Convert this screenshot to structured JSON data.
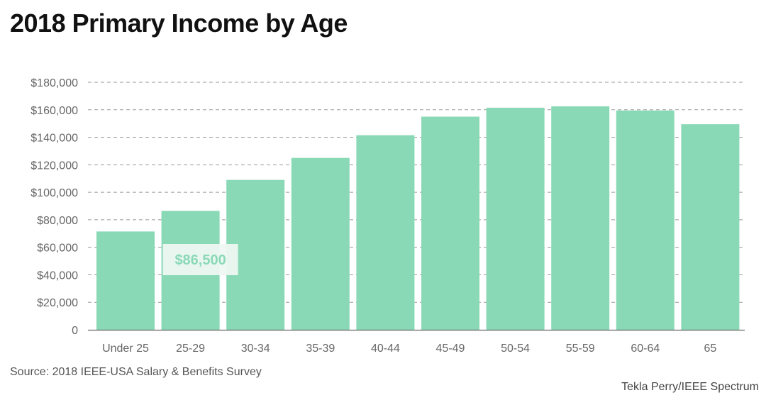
{
  "title": "2018 Primary Income by Age",
  "source": "Source: 2018 IEEE-USA Salary & Benefits Survey",
  "credit": "Tekla Perry/IEEE Spectrum",
  "colors": {
    "bar": "#8ad9b6",
    "grid": "#9a9a9a",
    "tooltip_bg": "#eef8f3",
    "tooltip_text": "#8ad9b6"
  },
  "tooltip": {
    "label": "$86,500",
    "category": "25-29"
  },
  "chart_data": {
    "type": "bar",
    "title": "2018 Primary Income by Age",
    "categories": [
      "Under 25",
      "25-29",
      "30-34",
      "35-39",
      "40-44",
      "45-49",
      "50-54",
      "55-59",
      "60-64",
      "65"
    ],
    "values": [
      71500,
      86500,
      109000,
      125000,
      141500,
      155000,
      161500,
      162500,
      159500,
      149500
    ],
    "ylim": [
      0,
      180000
    ],
    "yticks": [
      0,
      20000,
      40000,
      60000,
      80000,
      100000,
      120000,
      140000,
      160000,
      180000
    ],
    "ytick_labels": [
      "0",
      "$20,000",
      "$40,000",
      "$60,000",
      "$80,000",
      "$100,000",
      "$120,000",
      "$140,000",
      "$160,000",
      "$180,000"
    ],
    "grid": true,
    "xlabel": "",
    "ylabel": ""
  }
}
